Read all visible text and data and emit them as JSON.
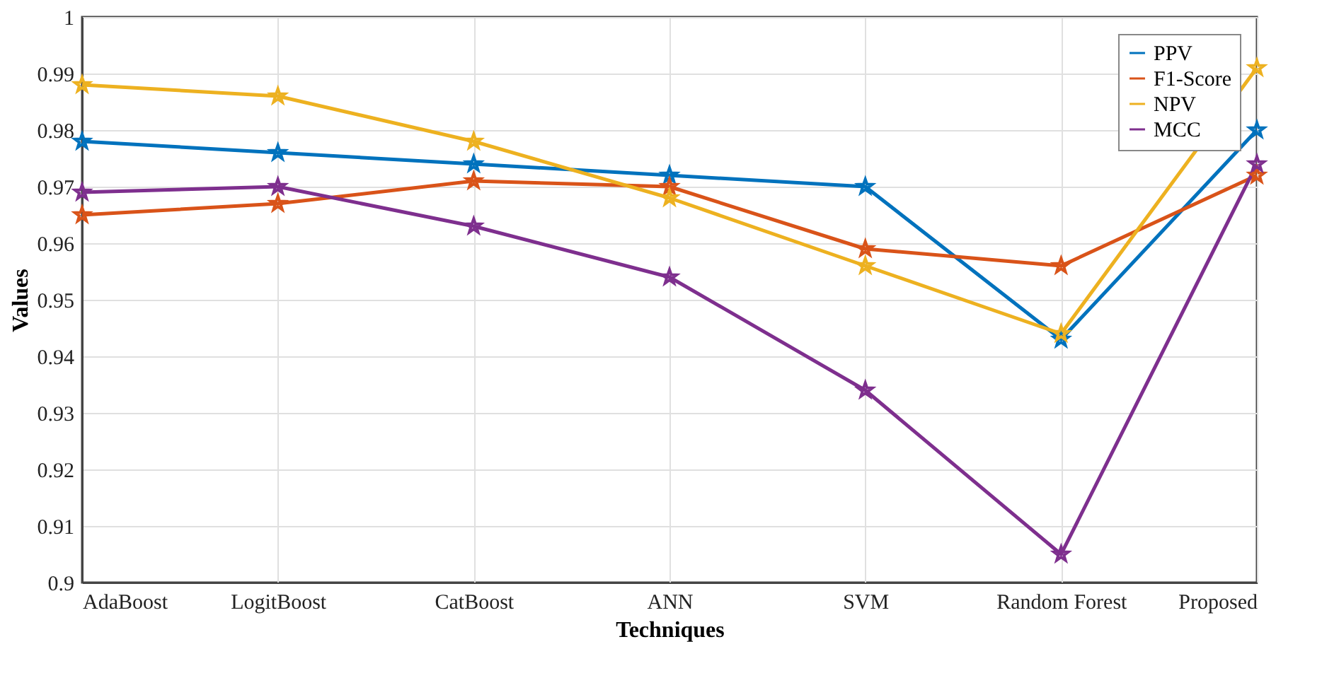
{
  "chart_data": {
    "type": "line",
    "xlabel": "Techniques",
    "ylabel": "Values",
    "categories": [
      "AdaBoost",
      "LogitBoost",
      "CatBoost",
      "ANN",
      "SVM",
      "Random Forest",
      "Proposed"
    ],
    "series": [
      {
        "name": "PPV",
        "color": "#0072bd",
        "values": [
          0.978,
          0.976,
          0.974,
          0.972,
          0.97,
          0.943,
          0.98
        ]
      },
      {
        "name": "F1-Score",
        "color": "#d95319",
        "values": [
          0.965,
          0.967,
          0.971,
          0.97,
          0.959,
          0.956,
          0.972
        ]
      },
      {
        "name": "NPV",
        "color": "#edb120",
        "values": [
          0.988,
          0.986,
          0.978,
          0.968,
          0.956,
          0.944,
          0.991
        ]
      },
      {
        "name": "MCC",
        "color": "#7e2f8e",
        "values": [
          0.969,
          0.97,
          0.963,
          0.954,
          0.934,
          0.905,
          0.974
        ]
      }
    ],
    "ylim": [
      0.9,
      1
    ],
    "yticks": [
      {
        "value": 0.9,
        "label": "0.9"
      },
      0.91,
      0.92,
      0.93,
      0.94,
      0.95,
      0.96,
      0.97,
      0.98,
      0.99,
      {
        "value": 1,
        "label": "1"
      }
    ],
    "grid": true,
    "legend": "top right",
    "marker": "star",
    "line_style": "solid"
  }
}
